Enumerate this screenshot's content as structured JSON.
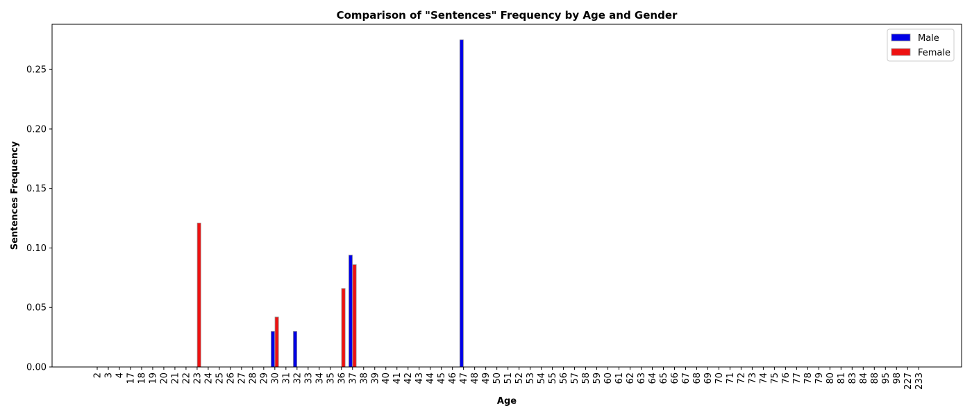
{
  "chart_data": {
    "type": "bar",
    "title": "Comparison of \"Sentences\" Frequency by Age and Gender",
    "xlabel": "Age",
    "ylabel": "Sentences Frequency",
    "ylim": [
      0,
      0.288
    ],
    "yticks": [
      "0.00",
      "0.05",
      "0.10",
      "0.15",
      "0.20",
      "0.25"
    ],
    "ytick_values": [
      0,
      0.05,
      0.1,
      0.15,
      0.2,
      0.25
    ],
    "grid": false,
    "legend_position": "top-right",
    "categories": [
      "2",
      "3",
      "4",
      "17",
      "18",
      "19",
      "20",
      "21",
      "22",
      "23",
      "24",
      "25",
      "26",
      "27",
      "28",
      "29",
      "30",
      "31",
      "32",
      "33",
      "34",
      "35",
      "36",
      "37",
      "38",
      "39",
      "40",
      "41",
      "42",
      "43",
      "44",
      "45",
      "46",
      "47",
      "48",
      "49",
      "50",
      "51",
      "52",
      "53",
      "54",
      "55",
      "56",
      "57",
      "58",
      "59",
      "60",
      "61",
      "62",
      "63",
      "64",
      "65",
      "66",
      "67",
      "68",
      "69",
      "70",
      "71",
      "72",
      "73",
      "74",
      "75",
      "76",
      "77",
      "78",
      "79",
      "80",
      "81",
      "83",
      "84",
      "88",
      "95",
      "98",
      "227",
      "233"
    ],
    "series": [
      {
        "name": "Male",
        "color": "#0000e6",
        "values": [
          0,
          0,
          0,
          0,
          0,
          0,
          0,
          0,
          0,
          0,
          0,
          0,
          0,
          0,
          0,
          0,
          0.03,
          0,
          0.03,
          0,
          0,
          0,
          0,
          0.094,
          0,
          0,
          0,
          0,
          0,
          0,
          0,
          0,
          0,
          0.275,
          0,
          0,
          0,
          0,
          0,
          0,
          0,
          0,
          0,
          0,
          0,
          0,
          0,
          0,
          0,
          0,
          0,
          0,
          0,
          0,
          0,
          0,
          0,
          0,
          0,
          0,
          0,
          0,
          0,
          0,
          0,
          0,
          0,
          0,
          0,
          0,
          0,
          0,
          0,
          0,
          0
        ]
      },
      {
        "name": "Female",
        "color": "#ee1111",
        "values": [
          0,
          0,
          0,
          0,
          0,
          0,
          0,
          0,
          0,
          0.121,
          0,
          0,
          0,
          0,
          0,
          0,
          0.042,
          0,
          0,
          0,
          0,
          0,
          0.066,
          0.086,
          0,
          0,
          0,
          0,
          0,
          0,
          0,
          0,
          0,
          0,
          0,
          0,
          0,
          0,
          0,
          0,
          0,
          0,
          0,
          0,
          0,
          0,
          0,
          0,
          0,
          0,
          0,
          0,
          0,
          0,
          0,
          0,
          0,
          0,
          0,
          0,
          0,
          0,
          0,
          0,
          0,
          0,
          0,
          0,
          0,
          0,
          0,
          0,
          0,
          0,
          0
        ]
      }
    ]
  }
}
